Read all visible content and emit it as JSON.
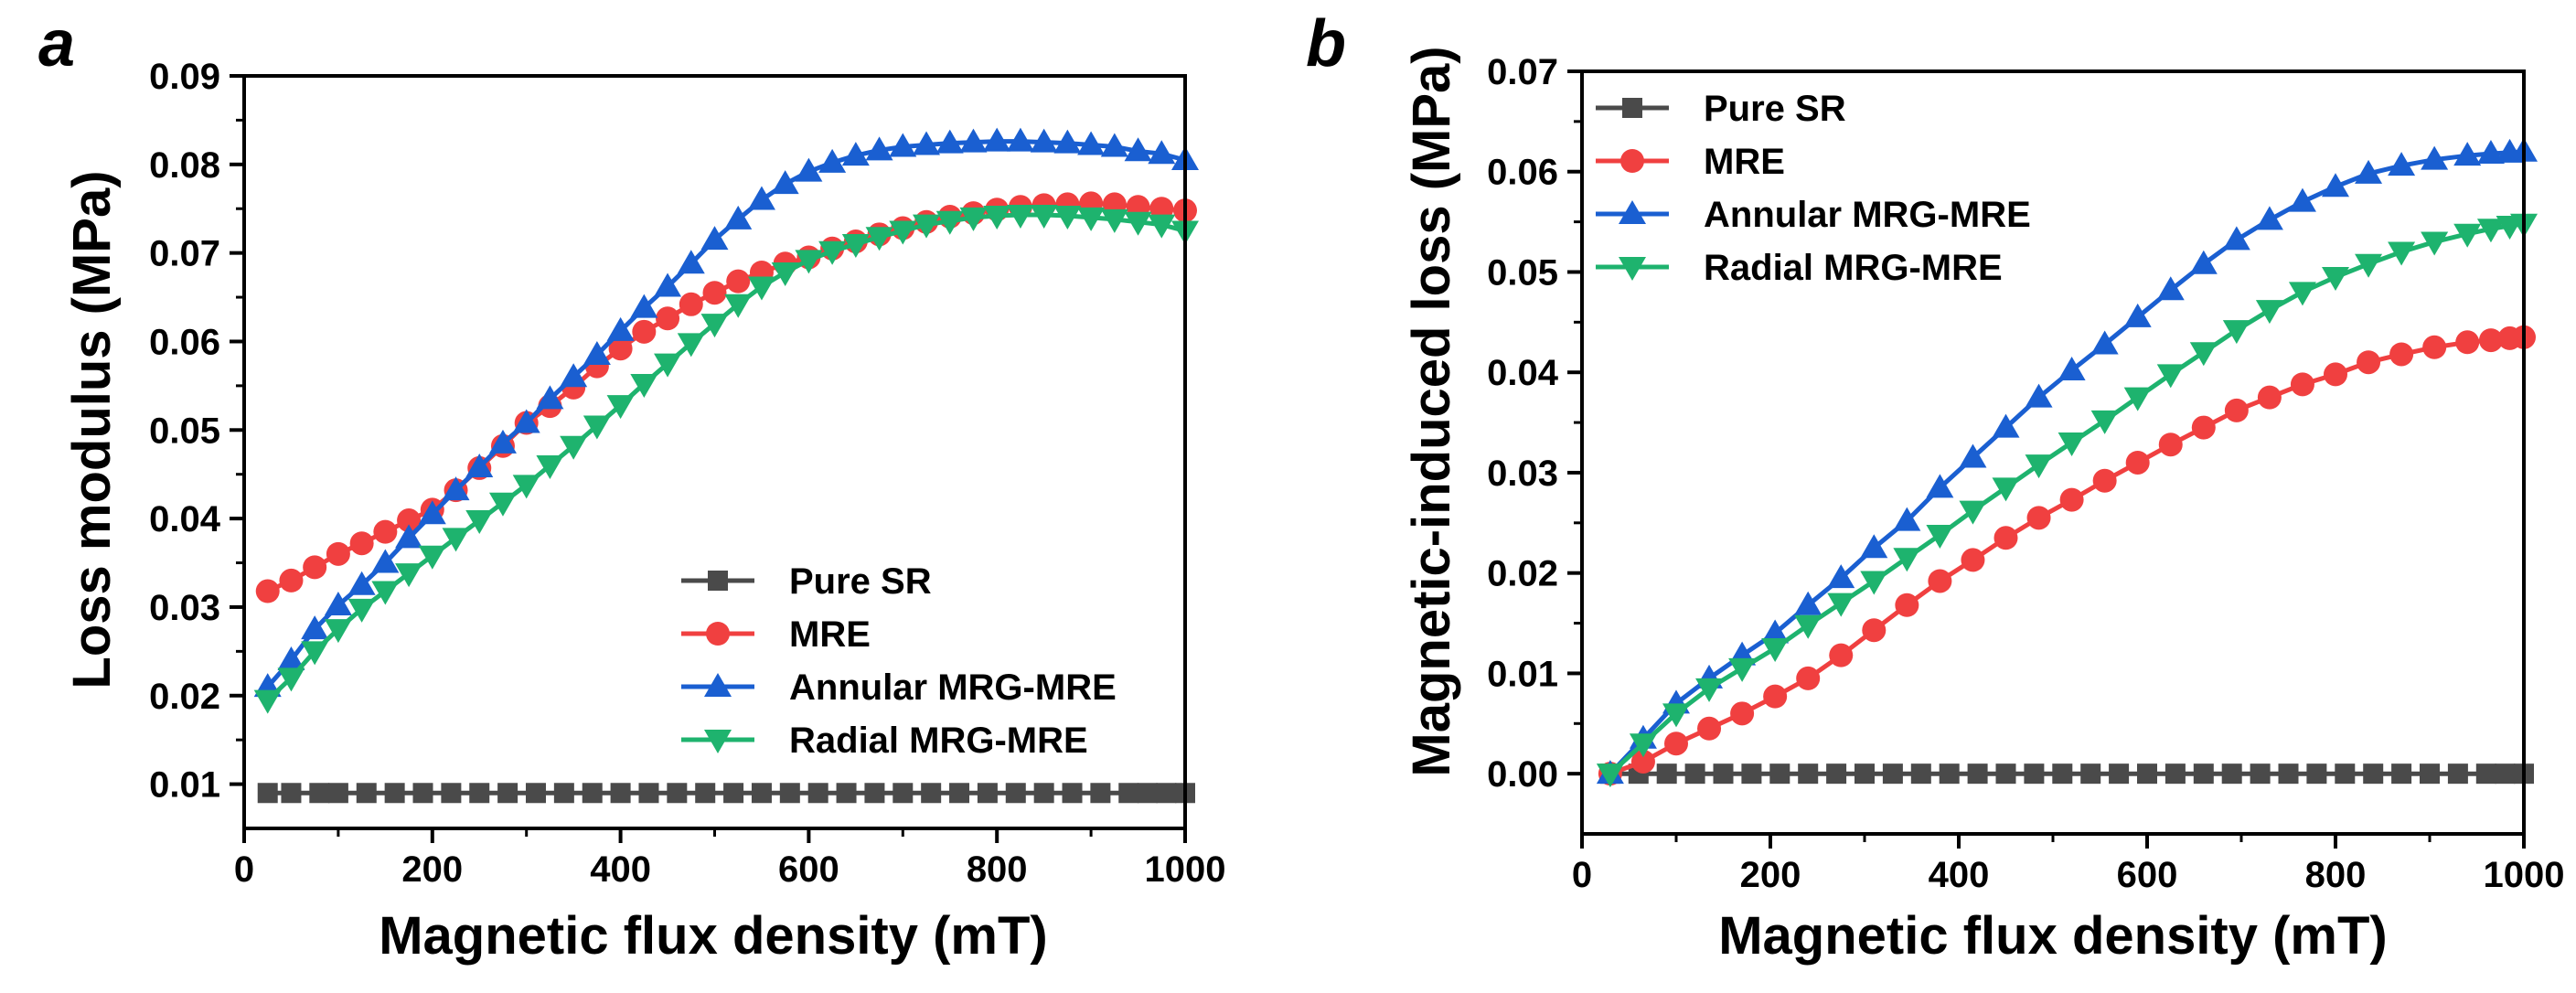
{
  "chart_data": [
    {
      "type": "line",
      "panel_label": "a",
      "xlabel": "Magnetic flux density (mT)",
      "ylabel": "Loss modulus (MPa)",
      "xlim": [
        0,
        1000
      ],
      "ylim": [
        0.005,
        0.09
      ],
      "xticks": [
        0,
        200,
        400,
        600,
        800,
        1000
      ],
      "xtick_labels": [
        "0",
        "200",
        "400",
        "600",
        "800",
        "1000"
      ],
      "yticks": [
        0.01,
        0.02,
        0.03,
        0.04,
        0.05,
        0.06,
        0.07,
        0.08,
        0.09
      ],
      "ytick_labels": [
        "0.01",
        "0.02",
        "0.03",
        "0.04",
        "0.05",
        "0.06",
        "0.07",
        "0.08",
        "0.09"
      ],
      "legend_position": "bottom-right",
      "series": [
        {
          "name": "Pure SR",
          "color": "#4a4a4a",
          "marker": "square",
          "x": [
            25,
            50,
            80,
            100,
            130,
            160,
            190,
            220,
            250,
            280,
            310,
            340,
            370,
            400,
            430,
            460,
            490,
            520,
            550,
            580,
            610,
            640,
            670,
            700,
            730,
            760,
            790,
            820,
            850,
            880,
            910,
            940,
            960,
            980,
            1000
          ],
          "y": [
            0.009,
            0.009,
            0.009,
            0.009,
            0.009,
            0.009,
            0.009,
            0.009,
            0.009,
            0.009,
            0.009,
            0.009,
            0.009,
            0.009,
            0.009,
            0.009,
            0.009,
            0.009,
            0.009,
            0.009,
            0.009,
            0.009,
            0.009,
            0.009,
            0.009,
            0.009,
            0.009,
            0.009,
            0.009,
            0.009,
            0.009,
            0.009,
            0.009,
            0.009,
            0.009
          ]
        },
        {
          "name": "MRE",
          "color": "#f04040",
          "marker": "circle",
          "x": [
            25,
            50,
            75,
            100,
            125,
            150,
            175,
            200,
            225,
            250,
            275,
            300,
            325,
            350,
            375,
            400,
            425,
            450,
            475,
            500,
            525,
            550,
            575,
            600,
            625,
            650,
            675,
            700,
            725,
            750,
            775,
            800,
            825,
            850,
            875,
            900,
            925,
            950,
            975,
            1000
          ],
          "y": [
            0.0318,
            0.033,
            0.0345,
            0.036,
            0.0372,
            0.0385,
            0.0398,
            0.041,
            0.0432,
            0.0457,
            0.0482,
            0.0508,
            0.0527,
            0.0548,
            0.0572,
            0.0592,
            0.0611,
            0.0626,
            0.0642,
            0.0655,
            0.0668,
            0.0678,
            0.0688,
            0.0695,
            0.0705,
            0.0713,
            0.0721,
            0.0728,
            0.0735,
            0.0741,
            0.0745,
            0.0749,
            0.0752,
            0.0754,
            0.0755,
            0.0756,
            0.0755,
            0.0752,
            0.075,
            0.0748
          ]
        },
        {
          "name": "Annular MRG-MRE",
          "color": "#1a5fd1",
          "marker": "triangle-up",
          "x": [
            25,
            50,
            75,
            100,
            125,
            150,
            175,
            200,
            225,
            250,
            275,
            300,
            325,
            350,
            375,
            400,
            425,
            450,
            475,
            500,
            525,
            550,
            575,
            600,
            625,
            650,
            675,
            700,
            725,
            750,
            775,
            800,
            825,
            850,
            875,
            900,
            925,
            950,
            975,
            1000
          ],
          "y": [
            0.021,
            0.024,
            0.0275,
            0.0302,
            0.0325,
            0.035,
            0.0378,
            0.0405,
            0.0432,
            0.0458,
            0.0485,
            0.0508,
            0.0535,
            0.056,
            0.0585,
            0.0612,
            0.0638,
            0.0662,
            0.0688,
            0.0715,
            0.0738,
            0.076,
            0.0778,
            0.0792,
            0.0802,
            0.081,
            0.0816,
            0.082,
            0.0822,
            0.0824,
            0.0825,
            0.0826,
            0.0826,
            0.0825,
            0.0824,
            0.0822,
            0.082,
            0.0815,
            0.0812,
            0.0805
          ]
        },
        {
          "name": "Radial MRG-MRE",
          "color": "#1eb36e",
          "marker": "triangle-down",
          "x": [
            25,
            50,
            75,
            100,
            125,
            150,
            175,
            200,
            225,
            250,
            275,
            300,
            325,
            350,
            375,
            400,
            425,
            450,
            475,
            500,
            525,
            550,
            575,
            600,
            625,
            650,
            675,
            700,
            725,
            750,
            775,
            800,
            825,
            850,
            875,
            900,
            925,
            950,
            975,
            1000
          ],
          "y": [
            0.0195,
            0.022,
            0.025,
            0.0275,
            0.0298,
            0.0318,
            0.0338,
            0.0358,
            0.0378,
            0.0398,
            0.0418,
            0.0438,
            0.046,
            0.0482,
            0.0505,
            0.0528,
            0.0552,
            0.0575,
            0.0598,
            0.062,
            0.0642,
            0.0662,
            0.0678,
            0.0692,
            0.0702,
            0.071,
            0.0718,
            0.0725,
            0.0732,
            0.0736,
            0.074,
            0.0742,
            0.0743,
            0.0743,
            0.0742,
            0.074,
            0.0738,
            0.0735,
            0.0732,
            0.0725
          ]
        }
      ]
    },
    {
      "type": "line",
      "panel_label": "b",
      "xlabel": "Magnetic flux density (mT)",
      "ylabel": "Magnetic-induced loss (MPa)",
      "xlim": [
        0,
        1000
      ],
      "ylim": [
        -0.006,
        0.07
      ],
      "xticks": [
        0,
        200,
        400,
        600,
        800,
        1000
      ],
      "xtick_labels": [
        "0",
        "200",
        "400",
        "600",
        "800",
        "1000"
      ],
      "yticks": [
        0.0,
        0.01,
        0.02,
        0.03,
        0.04,
        0.05,
        0.06,
        0.07
      ],
      "ytick_labels": [
        "0.00",
        "0.01",
        "0.02",
        "0.03",
        "0.04",
        "0.05",
        "0.06",
        "0.07"
      ],
      "legend_position": "top-left",
      "series": [
        {
          "name": "Pure SR",
          "color": "#4a4a4a",
          "marker": "square",
          "x": [
            30,
            60,
            90,
            120,
            150,
            180,
            210,
            240,
            270,
            300,
            330,
            360,
            390,
            420,
            450,
            480,
            510,
            540,
            570,
            600,
            630,
            660,
            690,
            720,
            750,
            780,
            810,
            840,
            870,
            900,
            930,
            960,
            980,
            1000
          ],
          "y": [
            0,
            0,
            0,
            0,
            0,
            0,
            0,
            0,
            0,
            0,
            0,
            0,
            0,
            0,
            0,
            0,
            0,
            0,
            0,
            0,
            0,
            0,
            0,
            0,
            0,
            0,
            0,
            0,
            0,
            0,
            0,
            0,
            0,
            0
          ]
        },
        {
          "name": "MRE",
          "color": "#f04040",
          "marker": "circle",
          "x": [
            30,
            65,
            100,
            135,
            170,
            205,
            240,
            275,
            310,
            345,
            380,
            415,
            450,
            485,
            520,
            555,
            590,
            625,
            660,
            695,
            730,
            765,
            800,
            835,
            870,
            905,
            940,
            965,
            985,
            1000
          ],
          "y": [
            0,
            0.0012,
            0.003,
            0.0045,
            0.006,
            0.0077,
            0.0095,
            0.0118,
            0.0143,
            0.0168,
            0.0192,
            0.0213,
            0.0235,
            0.0255,
            0.0273,
            0.0292,
            0.031,
            0.0328,
            0.0345,
            0.0362,
            0.0375,
            0.0388,
            0.0398,
            0.041,
            0.0418,
            0.0425,
            0.043,
            0.0432,
            0.0434,
            0.0435
          ]
        },
        {
          "name": "Annular MRG-MRE",
          "color": "#1a5fd1",
          "marker": "triangle-up",
          "x": [
            30,
            65,
            100,
            135,
            170,
            205,
            240,
            275,
            310,
            345,
            380,
            415,
            450,
            485,
            520,
            555,
            590,
            625,
            660,
            695,
            730,
            765,
            800,
            835,
            870,
            905,
            940,
            965,
            985,
            1000
          ],
          "y": [
            0,
            0.0035,
            0.007,
            0.0095,
            0.0118,
            0.014,
            0.0168,
            0.0195,
            0.0225,
            0.0252,
            0.0285,
            0.0315,
            0.0345,
            0.0375,
            0.0402,
            0.0428,
            0.0455,
            0.0482,
            0.0508,
            0.0532,
            0.0552,
            0.057,
            0.0585,
            0.0598,
            0.0606,
            0.0612,
            0.0616,
            0.0618,
            0.0619,
            0.062
          ]
        },
        {
          "name": "Radial MRG-MRE",
          "color": "#1eb36e",
          "marker": "triangle-down",
          "x": [
            30,
            65,
            100,
            135,
            170,
            205,
            240,
            275,
            310,
            345,
            380,
            415,
            450,
            485,
            520,
            555,
            590,
            625,
            660,
            695,
            730,
            765,
            800,
            835,
            870,
            905,
            940,
            965,
            985,
            1000
          ],
          "y": [
            0,
            0.003,
            0.006,
            0.0085,
            0.0105,
            0.0125,
            0.0148,
            0.017,
            0.0192,
            0.0215,
            0.0238,
            0.0262,
            0.0285,
            0.0308,
            0.033,
            0.0352,
            0.0375,
            0.0398,
            0.042,
            0.0442,
            0.0462,
            0.048,
            0.0495,
            0.0508,
            0.052,
            0.053,
            0.0538,
            0.0543,
            0.0546,
            0.0548
          ]
        }
      ]
    }
  ]
}
